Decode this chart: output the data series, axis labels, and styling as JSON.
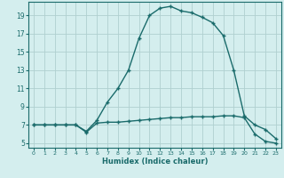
{
  "xlabel": "Humidex (Indice chaleur)",
  "bg_color": "#d4eeee",
  "line_color": "#1a6b6b",
  "grid_color": "#b0d0d0",
  "xlim": [
    -0.5,
    23.5
  ],
  "ylim": [
    4.5,
    20.5
  ],
  "xticks": [
    0,
    1,
    2,
    3,
    4,
    5,
    6,
    7,
    8,
    9,
    10,
    11,
    12,
    13,
    14,
    15,
    16,
    17,
    18,
    19,
    20,
    21,
    22,
    23
  ],
  "yticks": [
    5,
    7,
    9,
    11,
    13,
    15,
    17,
    19
  ],
  "line1_x": [
    0,
    1,
    2,
    3,
    4,
    5,
    6,
    7,
    8,
    9,
    10,
    11,
    12,
    13,
    14,
    15,
    16,
    17,
    18,
    19,
    20,
    21,
    22,
    23
  ],
  "line1_y": [
    7.0,
    7.0,
    7.0,
    7.0,
    7.0,
    6.3,
    7.5,
    9.5,
    11.0,
    13.0,
    16.5,
    19.0,
    19.8,
    20.0,
    19.5,
    19.3,
    18.8,
    18.2,
    16.8,
    13.0,
    8.0,
    7.0,
    6.5,
    5.5
  ],
  "line2_x": [
    0,
    1,
    2,
    3,
    4,
    5,
    6,
    7,
    8,
    9,
    10,
    11,
    12,
    13,
    14,
    15,
    16,
    17,
    18,
    19,
    20,
    21,
    22,
    23
  ],
  "line2_y": [
    7.0,
    7.0,
    7.0,
    7.0,
    7.0,
    6.2,
    7.2,
    7.3,
    7.3,
    7.4,
    7.5,
    7.6,
    7.7,
    7.8,
    7.8,
    7.9,
    7.9,
    7.9,
    8.0,
    8.0,
    7.8,
    6.0,
    5.2,
    5.0
  ]
}
